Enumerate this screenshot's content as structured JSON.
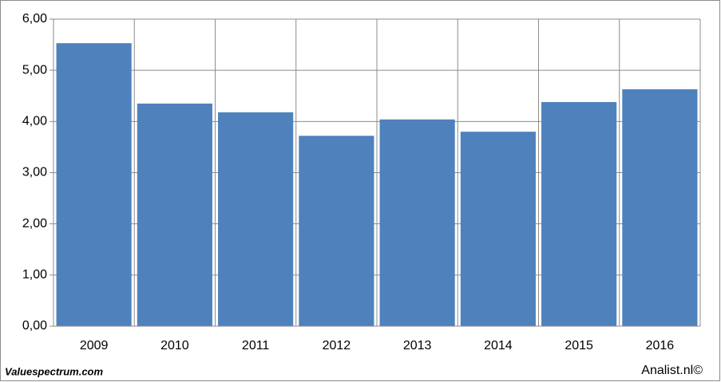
{
  "chart_data": {
    "type": "bar",
    "categories": [
      "2009",
      "2010",
      "2011",
      "2012",
      "2013",
      "2014",
      "2015",
      "2016"
    ],
    "values": [
      5.53,
      4.35,
      4.18,
      3.72,
      4.04,
      3.8,
      4.38,
      4.63
    ],
    "color": "#4f81bd",
    "ylim": [
      0,
      6
    ],
    "yticks": [
      {
        "value": 0,
        "label": "0,00"
      },
      {
        "value": 1,
        "label": "1,00"
      },
      {
        "value": 2,
        "label": "2,00"
      },
      {
        "value": 3,
        "label": "3,00"
      },
      {
        "value": 4,
        "label": "4,00"
      },
      {
        "value": 5,
        "label": "5,00"
      },
      {
        "value": 6,
        "label": "6,00"
      }
    ],
    "grid": true,
    "credits": [
      "Valuespectrum.com",
      "Analist.nl©"
    ]
  }
}
